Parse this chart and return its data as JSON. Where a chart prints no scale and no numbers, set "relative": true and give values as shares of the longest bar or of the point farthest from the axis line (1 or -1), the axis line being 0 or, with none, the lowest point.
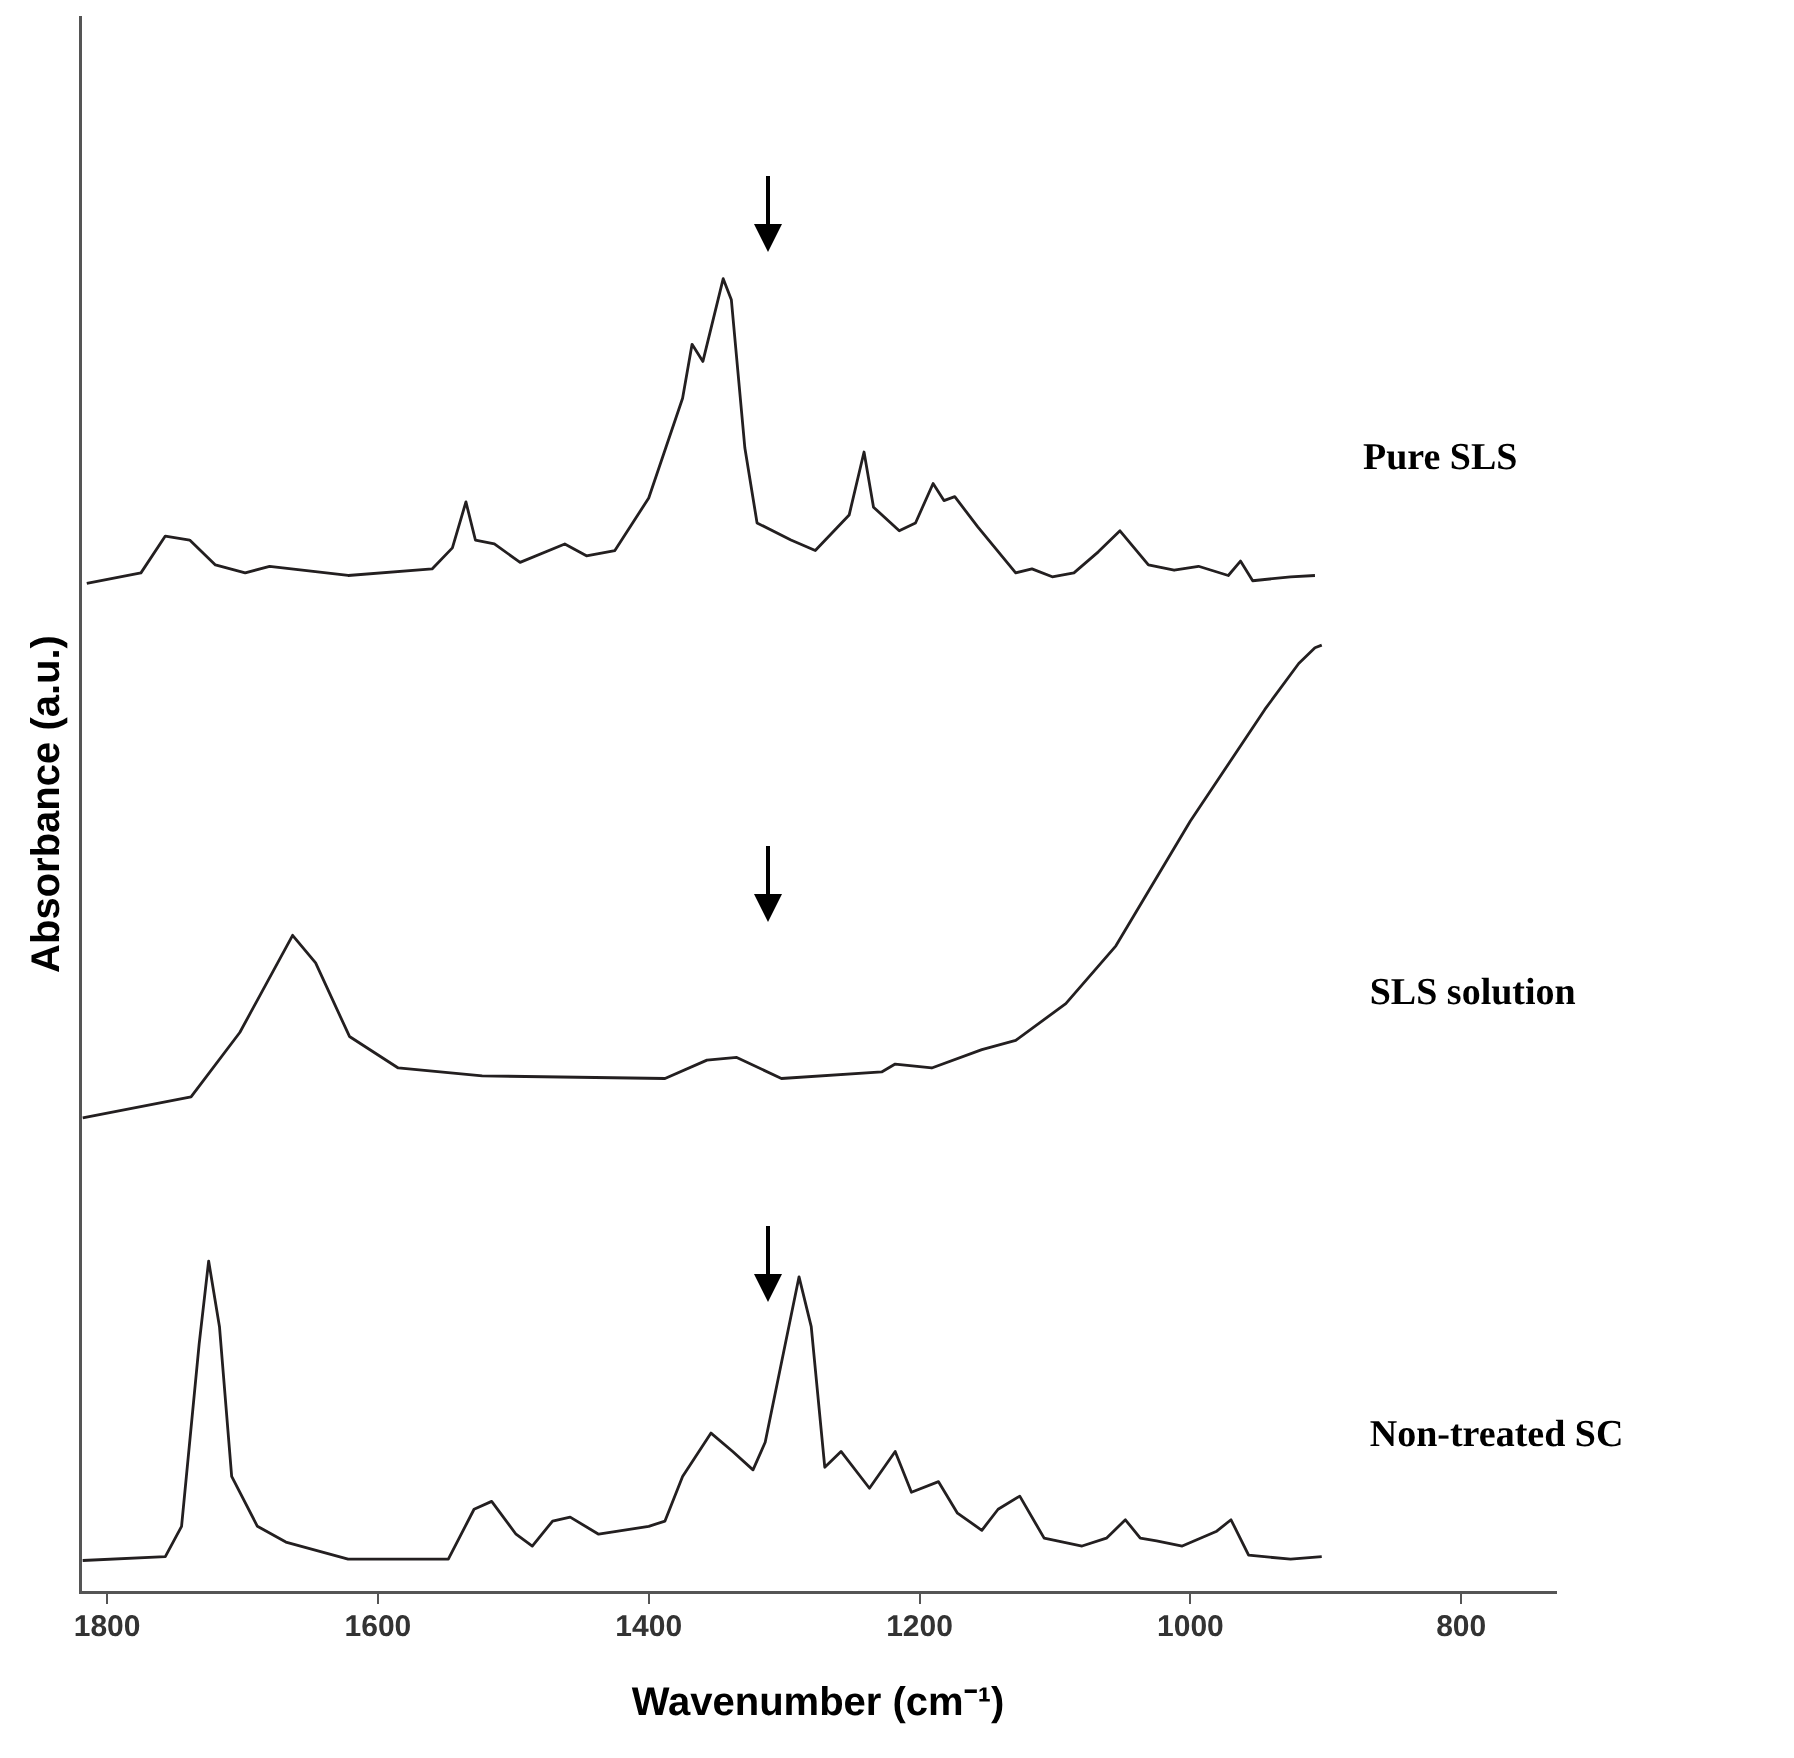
{
  "chart_data": {
    "type": "line",
    "relative": true,
    "xlabel": "Wavenumber (cm⁻¹)",
    "ylabel": "Absorbance (a.u.)",
    "xlim": [
      1820,
      730
    ],
    "xticks": [
      1800,
      1600,
      1400,
      1200,
      1000,
      800
    ],
    "tick_labels": "x",
    "grid": false,
    "legend": false,
    "marker": "none",
    "line_style": "solid",
    "series": [
      {
        "name": "Pure SLS",
        "color": "#231f20",
        "x": [
          1815,
          1775,
          1757,
          1739,
          1720,
          1698,
          1680,
          1622,
          1560,
          1545,
          1535,
          1528,
          1514,
          1495,
          1462,
          1446,
          1425,
          1400,
          1375,
          1368,
          1360,
          1345,
          1339,
          1329,
          1320,
          1295,
          1277,
          1252,
          1241,
          1234,
          1215,
          1203,
          1190,
          1182,
          1174,
          1157,
          1129,
          1117,
          1102,
          1086,
          1068,
          1052,
          1031,
          1012,
          994,
          972,
          963,
          954,
          926,
          908
        ],
        "values": [
          0.768,
          0.776,
          0.804,
          0.801,
          0.782,
          0.776,
          0.781,
          0.774,
          0.779,
          0.795,
          0.83,
          0.801,
          0.798,
          0.784,
          0.798,
          0.789,
          0.793,
          0.833,
          0.909,
          0.95,
          0.937,
          1,
          0.984,
          0.871,
          0.814,
          0.801,
          0.793,
          0.82,
          0.868,
          0.826,
          0.808,
          0.814,
          0.844,
          0.831,
          0.834,
          0.811,
          0.776,
          0.779,
          0.773,
          0.776,
          0.792,
          0.808,
          0.782,
          0.778,
          0.781,
          0.774,
          0.785,
          0.77,
          0.773,
          0.774
        ]
      },
      {
        "name": "SLS solution",
        "color": "#231f20",
        "x": [
          1818,
          1738,
          1702,
          1663,
          1646,
          1621,
          1585,
          1523,
          1388,
          1357,
          1335,
          1302,
          1228,
          1218,
          1191,
          1154,
          1129,
          1092,
          1055,
          1000,
          945,
          920,
          908,
          903
        ],
        "values": [
          0.361,
          0.377,
          0.426,
          0.5,
          0.479,
          0.423,
          0.399,
          0.393,
          0.391,
          0.405,
          0.407,
          0.391,
          0.396,
          0.402,
          0.399,
          0.413,
          0.42,
          0.448,
          0.492,
          0.587,
          0.672,
          0.707,
          0.719,
          0.721
        ]
      },
      {
        "name": "Non-treated SC",
        "color": "#231f20",
        "x": [
          1818,
          1757,
          1745,
          1732,
          1725,
          1717,
          1708,
          1689,
          1668,
          1622,
          1548,
          1529,
          1516,
          1498,
          1486,
          1471,
          1458,
          1437,
          1400,
          1388,
          1375,
          1354,
          1338,
          1323,
          1314,
          1289,
          1280,
          1270,
          1258,
          1237,
          1218,
          1206,
          1186,
          1172,
          1154,
          1142,
          1126,
          1108,
          1080,
          1062,
          1048,
          1037,
          1025,
          1006,
          981,
          970,
          957,
          926,
          903
        ],
        "values": [
          0.024,
          0.027,
          0.05,
          0.189,
          0.252,
          0.202,
          0.088,
          0.05,
          0.038,
          0.025,
          0.025,
          0.063,
          0.069,
          0.044,
          0.035,
          0.054,
          0.057,
          0.044,
          0.05,
          0.054,
          0.088,
          0.121,
          0.107,
          0.093,
          0.114,
          0.24,
          0.202,
          0.095,
          0.107,
          0.079,
          0.107,
          0.076,
          0.084,
          0.06,
          0.047,
          0.063,
          0.073,
          0.041,
          0.035,
          0.041,
          0.055,
          0.041,
          0.039,
          0.035,
          0.046,
          0.055,
          0.028,
          0.025,
          0.027
        ]
      }
    ]
  }
}
